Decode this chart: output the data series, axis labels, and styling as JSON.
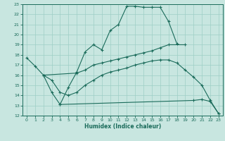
{
  "xlabel": "Humidex (Indice chaleur)",
  "bg_color": "#c8e6e0",
  "line_color": "#1a6b5a",
  "grid_color": "#9ecfc5",
  "xlim": [
    -0.5,
    23.5
  ],
  "ylim": [
    12,
    23
  ],
  "xticks": [
    0,
    1,
    2,
    3,
    4,
    5,
    6,
    7,
    8,
    9,
    10,
    11,
    12,
    13,
    14,
    15,
    16,
    17,
    18,
    19,
    20,
    21,
    22,
    23
  ],
  "yticks": [
    12,
    13,
    14,
    15,
    16,
    17,
    18,
    19,
    20,
    21,
    22,
    23
  ],
  "line1_x": [
    0,
    1,
    2,
    3,
    4,
    5,
    6,
    7,
    8,
    9,
    10,
    11,
    12,
    13,
    14,
    15,
    16,
    17,
    18
  ],
  "line1_y": [
    17.7,
    16.9,
    16.0,
    14.3,
    13.1,
    14.8,
    16.3,
    18.3,
    19.0,
    18.5,
    20.4,
    21.0,
    22.8,
    22.8,
    22.7,
    22.7,
    22.7,
    21.3,
    19.1
  ],
  "line2_x": [
    2,
    6,
    7,
    8,
    9,
    10,
    11,
    12,
    13,
    14,
    15,
    16,
    17,
    19
  ],
  "line2_y": [
    16.0,
    16.2,
    16.5,
    17.0,
    17.2,
    17.4,
    17.6,
    17.8,
    18.0,
    18.2,
    18.4,
    18.7,
    19.0,
    19.0
  ],
  "line3_x": [
    2,
    3,
    4,
    5,
    6,
    7,
    8,
    9,
    10,
    11,
    12,
    13,
    14,
    15,
    16,
    17,
    18,
    19,
    20,
    21,
    22,
    23
  ],
  "line3_y": [
    16.0,
    15.5,
    14.3,
    14.0,
    14.3,
    15.0,
    15.5,
    16.0,
    16.3,
    16.5,
    16.7,
    17.0,
    17.2,
    17.4,
    17.5,
    17.5,
    17.2,
    16.5,
    15.8,
    15.0,
    13.5,
    12.2
  ],
  "line4_x": [
    4,
    20,
    21,
    22,
    23
  ],
  "line4_y": [
    13.1,
    13.5,
    13.6,
    13.4,
    12.2
  ]
}
